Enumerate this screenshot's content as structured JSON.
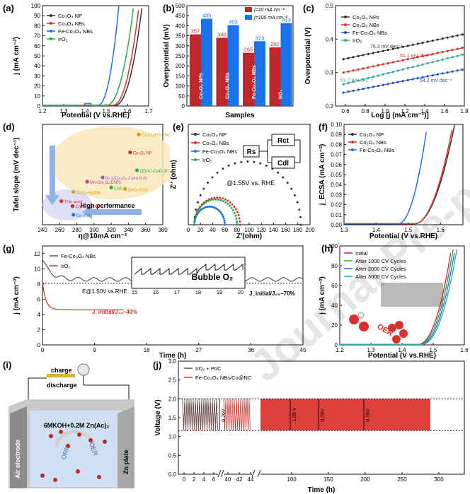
{
  "colors": {
    "black": "#333333",
    "red": "#d9302c",
    "blue": "#1a73e8",
    "green": "#2aa84a",
    "darkred": "#c0272d",
    "navy": "#1f4fc7",
    "teal": "#35a7a0",
    "gray": "#7d7d7d"
  },
  "watermark": "Journal Pre-proof",
  "chart_data": [
    {
      "panel": "(a)",
      "type": "line",
      "xlabel": "Potential (V vs.RHE)",
      "ylabel": "j (mA cm⁻²)",
      "xticks": [
        "1.2",
        "1.3",
        "1.4",
        "1.5",
        "1.6",
        "1.7"
      ],
      "yticks": [
        "0",
        "10",
        "20",
        "30",
        "40",
        "50",
        "60",
        "70",
        "80",
        "90",
        "100"
      ],
      "xlim": [
        1.2,
        1.7
      ],
      "ylim": [
        0,
        100
      ],
      "series": [
        {
          "name": "Co₃O₄ NP",
          "color": "#333333",
          "onset": 1.54,
          "end": 1.67
        },
        {
          "name": "Co₃O₄ NBs",
          "color": "#d9302c",
          "onset": 1.53,
          "end": 1.655
        },
        {
          "name": "Fe-Co₃O₄ NBs",
          "color": "#1a73e8",
          "onset": 1.46,
          "end": 1.56
        },
        {
          "name": "IrO₂",
          "color": "#2aa84a",
          "onset": 1.5,
          "end": 1.63
        }
      ]
    },
    {
      "panel": "(b)",
      "type": "bar",
      "xlabel": "Samples",
      "ylabel": "Overpotential (mV)",
      "categories": [
        "Co₃O₄ NPs",
        "Co₃O₄ NBs",
        "Fe-Co₃O₄ NBs",
        "IrO₂"
      ],
      "series": [
        {
          "name": "j=10 mA cm⁻²",
          "color": "#c0272d",
          "values": [
            357,
            340,
            265,
            292
          ]
        },
        {
          "name": "j=100 mA cm⁻²",
          "color": "#1a73e8",
          "values": [
            435,
            403,
            323,
            413
          ]
        }
      ],
      "ylim": [
        0,
        500
      ],
      "yticks": [
        "0",
        "50",
        "100",
        "150",
        "200",
        "250",
        "300",
        "350",
        "400",
        "450",
        "500"
      ]
    },
    {
      "panel": "(c)",
      "type": "scatter",
      "xlabel": "Log [j (mA cm⁻²)]",
      "ylabel": "Overpotential (V)",
      "xticks": [
        "0.6",
        "0.8",
        "1.0",
        "1.2",
        "1.4",
        "1.6",
        "1.8"
      ],
      "yticks": [
        "0.2",
        "0.3",
        "0.4",
        "0.5"
      ],
      "xlim": [
        0.5,
        1.8
      ],
      "ylim": [
        0.2,
        0.5
      ],
      "series": [
        {
          "name": "Co₃O₄ NPs",
          "color": "#333333",
          "slope_label": "75.3 mV dec⁻¹",
          "y0": 0.34,
          "y1": 0.415
        },
        {
          "name": "Co₃O₄ NBs",
          "color": "#d9302c",
          "slope_label": "61.1 mV dec⁻¹",
          "y0": 0.3,
          "y1": 0.375
        },
        {
          "name": "Fe-Co₃O₄ NBs",
          "color": "#1f4fc7",
          "slope_label": "54.2 mV dec⁻¹",
          "y0": 0.24,
          "y1": 0.31
        },
        {
          "name": "IrO₂",
          "color": "#35a7a0",
          "slope_label": "61.7 mV dec⁻¹",
          "y0": 0.265,
          "y1": 0.355
        }
      ]
    },
    {
      "panel": "(d)",
      "type": "scatter",
      "xlabel": "η@10mA cm⁻²",
      "ylabel": "Tafel slope (mV dec⁻¹)",
      "xticks": [
        "240",
        "260",
        "280",
        "300",
        "320",
        "340",
        "360",
        "380"
      ],
      "xlim": [
        240,
        380
      ],
      "ylim": [
        20,
        160
      ],
      "points": [
        {
          "label": "Co₃O₄/HZ/CNC",
          "x": 352,
          "y": 146
        },
        {
          "label": "Co₃O₄ NF",
          "x": 342,
          "y": 121
        },
        {
          "label": "ODAC-CoO-30",
          "x": 350,
          "y": 96
        },
        {
          "label": "Ni-1/Co₃O₄-2-pro-9-Ar",
          "x": 310,
          "y": 86
        },
        {
          "label": "Mn-Co₃O₄/CNTs",
          "x": 292,
          "y": 80
        },
        {
          "label": "CoS",
          "x": 320,
          "y": 72
        },
        {
          "label": "CoO₂-CoS",
          "x": 336,
          "y": 70
        },
        {
          "label": "CoO₂-Ag@B",
          "x": 276,
          "y": 66
        },
        {
          "label": "This work",
          "x": 262,
          "y": 53
        },
        {
          "label": "CoP-CoS/NF",
          "x": 275,
          "y": 46
        },
        {
          "label": "Co-300",
          "x": 276,
          "y": 34
        }
      ],
      "annotation": "High performance"
    },
    {
      "panel": "(e)",
      "type": "scatter",
      "xlabel": "Z'(ohm)",
      "ylabel": "Z'' (ohm)",
      "xticks": [
        "0",
        "20",
        "40",
        "60",
        "80",
        "100",
        "120",
        "140",
        "160",
        "180",
        "200"
      ],
      "xlim": [
        0,
        200
      ],
      "ylim": [
        0,
        100
      ],
      "note": "@1.55V vs. RHE",
      "circuit": [
        "Rs",
        "Rct",
        "Cdl"
      ],
      "series": [
        {
          "name": "Co₃O₄ NP",
          "color": "#333333",
          "start": 10,
          "end": 185
        },
        {
          "name": "Co₃O₄ NBs",
          "color": "#d9302c",
          "start": 10,
          "end": 85
        },
        {
          "name": "Fe-Co₃O₄ NBs",
          "color": "#1a73e8",
          "start": 10,
          "end": 60
        },
        {
          "name": "IrO₂",
          "color": "#2aa84a",
          "start": 10,
          "end": 80
        }
      ]
    },
    {
      "panel": "(f)",
      "type": "line",
      "xlabel": "Potential (V vs.RHE)",
      "ylabel": "j_ECSA (mA cm⁻²)",
      "xticks": [
        "1.3",
        "1.4",
        "1.5",
        "1.6"
      ],
      "yticks": [
        "0.00",
        "0.01",
        "0.02",
        "0.03",
        "0.04",
        "0.05",
        "0.06",
        "0.07",
        "0.08",
        "0.09",
        "0.10"
      ],
      "xlim": [
        1.3,
        1.67
      ],
      "ylim": [
        0,
        0.1
      ],
      "series": [
        {
          "name": "Co₃O₄ NP",
          "color": "#333333"
        },
        {
          "name": "Co₃O₄ NBs",
          "color": "#d9302c"
        },
        {
          "name": "Fe-Co₃O₄ NBs",
          "color": "#1a73e8"
        }
      ]
    },
    {
      "panel": "(g)",
      "type": "line",
      "xlabel": "Time (h)",
      "ylabel": "j (mA cm⁻²)",
      "xticks": [
        "0",
        "9",
        "18",
        "27",
        "36",
        "45"
      ],
      "yticks": [
        "0",
        "2",
        "4",
        "6",
        "8",
        "10",
        "12"
      ],
      "xlim": [
        0,
        45
      ],
      "ylim": [
        0,
        13
      ],
      "series": [
        {
          "name": "Fe-Co₃O₄ NBs",
          "color": "#555555"
        },
        {
          "name": "IrO₂",
          "color": "#d9302c"
        }
      ],
      "annotations": [
        "E@1.50V vs.RHE",
        "J_initial/J₄₅~70%",
        "J_initial/J₁₄~40%"
      ],
      "inset": {
        "label": "Bubble O₂",
        "xticks": [
          "15",
          "16",
          "17",
          "18",
          "19",
          "20"
        ]
      }
    },
    {
      "panel": "(h)",
      "type": "line",
      "xlabel": "Potential (V vs.RHE)",
      "ylabel": "j (mA cm⁻²)",
      "xticks": [
        "1.2",
        "1.3",
        "1.4",
        "1.5",
        "1.6"
      ],
      "yticks": [
        "0",
        "20",
        "40",
        "60",
        "80",
        "100"
      ],
      "xlim": [
        1.2,
        1.6
      ],
      "ylim": [
        0,
        100
      ],
      "series": [
        {
          "name": "Initial",
          "color": "#c0272d"
        },
        {
          "name": "After 1000 CV Cycles",
          "color": "#2aa84a"
        },
        {
          "name": "After 2000 CV Cycles",
          "color": "#1a73e8"
        },
        {
          "name": "After 3000 CV Cycles",
          "color": "#35a7a0"
        }
      ],
      "annotation": "OER"
    },
    {
      "panel": "(i)",
      "type": "diagram",
      "labels": {
        "charge": "charge",
        "discharge": "discharge",
        "electrolyte": "6MKOH+0.2M Zn(Ac)₂",
        "air": "Air electrode",
        "zn": "Zn plate",
        "orr": "ORR",
        "oer": "OER"
      }
    },
    {
      "panel": "(j)",
      "type": "line",
      "xlabel": "Time (h)",
      "ylabel": "Voltage (V)",
      "xticks": [
        "0",
        "2",
        "4",
        "6",
        "40",
        "42",
        "44",
        "100",
        "150",
        "200",
        "250",
        "300"
      ],
      "yticks": [
        "0.0",
        "0.5",
        "1.0",
        "1.5",
        "2.0",
        "2.5",
        "3.0"
      ],
      "ylim": [
        0,
        3.0
      ],
      "series": [
        {
          "name": "IrO₂ + Pt/C",
          "color": "#555555"
        },
        {
          "name": "Fe-Co₃O₄ NBs/Co@NC",
          "color": "#d9302c"
        }
      ],
      "gap_labels": [
        "0.76V",
        "1.05 V",
        "0.78V",
        "0.78V"
      ]
    }
  ]
}
